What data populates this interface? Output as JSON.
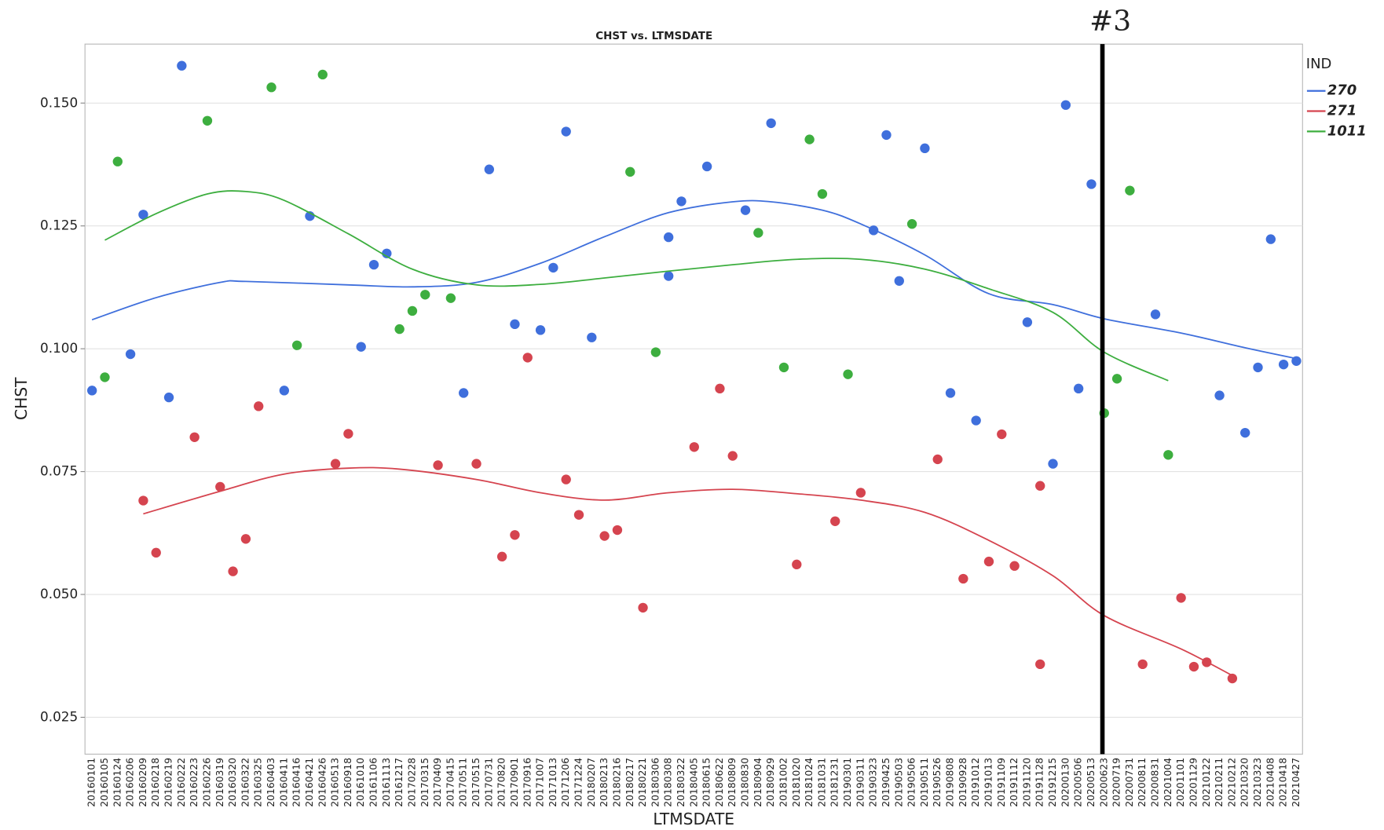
{
  "chart_data": {
    "type": "scatter",
    "title": "CHST vs. LTMSDATE",
    "x_label": "LTMSDATE",
    "y_label": "CHST",
    "legend_title": "IND",
    "legend": "right",
    "grid": true,
    "ylim": [
      0.0175,
      0.162
    ],
    "yticks": [
      0.025,
      {
        "value": 0.05,
        "label": "0.050"
      },
      0.075,
      {
        "value": 0.1,
        "label": "0.100"
      },
      0.125,
      {
        "value": 0.15,
        "label": "0.150"
      }
    ],
    "categories": [
      "20160101",
      "20160105",
      "20160124",
      "20160206",
      "20160209",
      "20160218",
      "20160219",
      "20160222",
      "20160223",
      "20160226",
      "20160319",
      "20160320",
      "20160322",
      "20160325",
      "20160403",
      "20160411",
      "20160416",
      "20160421",
      "20160426",
      "20160513",
      "20160918",
      "20161010",
      "20161106",
      "20161113",
      "20161217",
      "20170228",
      "20170315",
      "20170409",
      "20170415",
      "20170511",
      "20170515",
      "20170731",
      "20170820",
      "20170901",
      "20170916",
      "20171007",
      "20171013",
      "20171206",
      "20171224",
      "20180207",
      "20180213",
      "20180216",
      "20180217",
      "20180221",
      "20180306",
      "20180308",
      "20180322",
      "20180405",
      "20180615",
      "20180622",
      "20180809",
      "20180830",
      "20180904",
      "20180929",
      "20181002",
      "20181020",
      "20181024",
      "20181031",
      "20181231",
      "20190301",
      "20190311",
      "20190323",
      "20190425",
      "20190503",
      "20190506",
      "20190511",
      "20190526",
      "20190808",
      "20190928",
      "20191012",
      "20191013",
      "20191109",
      "20191112",
      "20191120",
      "20191128",
      "20191215",
      "20200130",
      "20200506",
      "20200513",
      "20200623",
      "20200719",
      "20200731",
      "20200811",
      "20200831",
      "20201004",
      "20201101",
      "20201129",
      "20210122",
      "20210211",
      "20210212",
      "20210320",
      "20210323",
      "20210408",
      "20210418",
      "20210427"
    ],
    "series": [
      {
        "name": "270",
        "color": "#3f6fdc",
        "x": [
          "20160101",
          "20160206",
          "20160209",
          "20160219",
          "20160222",
          "20160411",
          "20160421",
          "20161010",
          "20161106",
          "20161113",
          "20170511",
          "20170731",
          "20170901",
          "20171007",
          "20171013",
          "20171206",
          "20180207",
          "20180308",
          "20180308",
          "20180322",
          "20180615",
          "20180830",
          "20180929",
          "20190323",
          "20190425",
          "20190503",
          "20190511",
          "20190808",
          "20191012",
          "20191120",
          "20191215",
          "20200130",
          "20200506",
          "20200513",
          "20200831",
          "20210211",
          "20210320",
          "20210323",
          "20210408",
          "20210418",
          "20210427"
        ],
        "values": [
          0.0915,
          0.0989,
          0.1273,
          0.0901,
          0.1576,
          0.0915,
          0.127,
          0.1004,
          0.1171,
          0.1194,
          0.091,
          0.1365,
          0.105,
          0.1038,
          0.1165,
          0.1442,
          0.1023,
          0.1227,
          0.1148,
          0.13,
          0.1371,
          0.1282,
          0.1459,
          0.1241,
          0.1435,
          0.1138,
          0.1408,
          0.091,
          0.0854,
          0.1054,
          0.0766,
          0.1496,
          0.0919,
          0.1335,
          0.107,
          0.0905,
          0.0829,
          0.0962,
          0.1223,
          0.0968,
          0.0975
        ],
        "smooth": {
          "x": [
            "20160101",
            "20160218",
            "20160319",
            "20160322",
            "20160918",
            "20170228",
            "20170515",
            "20171007",
            "20180213",
            "20180308",
            "20180809",
            "20180929",
            "20181031",
            "20190311",
            "20190511",
            "20191013",
            "20191215",
            "20200623",
            "20201101",
            "20210320",
            "20210427"
          ],
          "values": [
            0.1059,
            0.1104,
            0.1135,
            0.1137,
            0.113,
            0.1126,
            0.1135,
            0.1174,
            0.1228,
            0.1277,
            0.1299,
            0.1299,
            0.1282,
            0.1254,
            0.1191,
            0.1112,
            0.109,
            0.1061,
            0.1032,
            0.1002,
            0.098
          ]
        }
      },
      {
        "name": "271",
        "color": "#d5444f",
        "x": [
          "20160209",
          "20160218",
          "20160223",
          "20160319",
          "20160320",
          "20160322",
          "20160325",
          "20160513",
          "20160918",
          "20170409",
          "20170515",
          "20170820",
          "20170901",
          "20170916",
          "20171206",
          "20171224",
          "20180213",
          "20180216",
          "20180221",
          "20180405",
          "20180622",
          "20180809",
          "20181020",
          "20181231",
          "20190311",
          "20190526",
          "20190928",
          "20191013",
          "20191109",
          "20191112",
          "20191128",
          "20191128",
          "20200811",
          "20201101",
          "20201129",
          "20210122",
          "20210212"
        ],
        "values": [
          0.0691,
          0.0585,
          0.082,
          0.0719,
          0.0547,
          0.0613,
          0.0883,
          0.0766,
          0.0827,
          0.0763,
          0.0766,
          0.0577,
          0.0621,
          0.0982,
          0.0734,
          0.0662,
          0.0619,
          0.0631,
          0.0473,
          0.08,
          0.0919,
          0.0782,
          0.0561,
          0.0649,
          0.0707,
          0.0775,
          0.0532,
          0.0567,
          0.0826,
          0.0558,
          0.0721,
          0.0358,
          0.0358,
          0.0493,
          0.0353,
          0.0362,
          0.0329
        ],
        "smooth": {
          "x": [
            "20160209",
            "20160319",
            "20160411",
            "20160918",
            "20161217",
            "20170515",
            "20171007",
            "20180213",
            "20180308",
            "20180809",
            "20181020",
            "20190311",
            "20190511",
            "20191013",
            "20191215",
            "20200623",
            "20201101",
            "20210212"
          ],
          "values": [
            0.0664,
            0.071,
            0.0745,
            0.0757,
            0.0755,
            0.0734,
            0.0707,
            0.0692,
            0.0707,
            0.0714,
            0.0705,
            0.0692,
            0.0667,
            0.061,
            0.0538,
            0.0457,
            0.0389,
            0.0335
          ]
        }
      },
      {
        "name": "1011",
        "color": "#3dae3f",
        "x": [
          "20160105",
          "20160124",
          "20160226",
          "20160403",
          "20160416",
          "20160426",
          "20161217",
          "20170228",
          "20170315",
          "20170415",
          "20180217",
          "20180306",
          "20180904",
          "20181002",
          "20181024",
          "20181031",
          "20190301",
          "20190506",
          "20200623",
          "20200719",
          "20200731",
          "20201004"
        ],
        "values": [
          0.0942,
          0.1381,
          0.1464,
          0.1532,
          0.1007,
          0.1558,
          0.104,
          0.1077,
          0.111,
          0.1103,
          0.136,
          0.0993,
          0.1236,
          0.0962,
          0.1426,
          0.1315,
          0.0948,
          0.1254,
          0.0869,
          0.0939,
          0.1322,
          0.0784
        ],
        "smooth": {
          "x": [
            "20160105",
            "20160218",
            "20160226",
            "20160322",
            "20160411",
            "20160918",
            "20170228",
            "20170515",
            "20171007",
            "20180213",
            "20180308",
            "20180809",
            "20181020",
            "20190311",
            "20190511",
            "20191013",
            "20191215",
            "20200623",
            "20201004"
          ],
          "values": [
            0.1221,
            0.1275,
            0.1315,
            0.132,
            0.1302,
            0.1234,
            0.1162,
            0.113,
            0.1131,
            0.1144,
            0.1158,
            0.1171,
            0.1182,
            0.1182,
            0.1162,
            0.1122,
            0.1074,
            0.0993,
            0.0935
          ]
        }
      }
    ],
    "annotation": {
      "text": "#3",
      "x": "20200623"
    }
  }
}
